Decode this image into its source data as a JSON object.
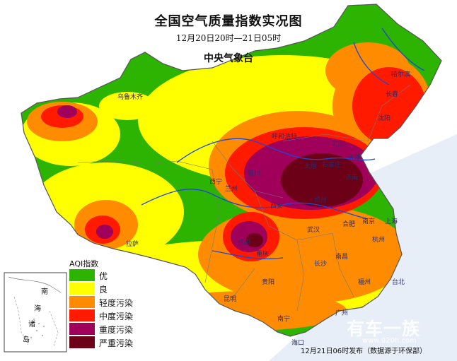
{
  "title": "全国空气质量指数实况图",
  "period": "12月20日20时—21日05时",
  "source": "中央气象台",
  "footer": "12月21日06时发布（数据源于环保部）",
  "watermark": {
    "brand": "有车一族",
    "url": "www.020h.com"
  },
  "legend": {
    "title": "AQI指数",
    "items": [
      {
        "label": "优",
        "color": "#2db400"
      },
      {
        "label": "良",
        "color": "#ffff00"
      },
      {
        "label": "轻度污染",
        "color": "#ff8c00"
      },
      {
        "label": "中度污染",
        "color": "#ff1a00"
      },
      {
        "label": "重度污染",
        "color": "#a0005a"
      },
      {
        "label": "严重污染",
        "color": "#6b0016"
      }
    ]
  },
  "inset": {
    "labels": [
      "南",
      "海",
      "诸",
      "岛"
    ]
  },
  "cities": [
    "乌鲁木齐",
    "哈尔滨",
    "长春",
    "沈阳",
    "呼和浩特",
    "北京",
    "天津",
    "太原",
    "石家庄",
    "银川",
    "西宁",
    "兰州",
    "西安",
    "郑州",
    "济南",
    "合肥",
    "南京",
    "上海",
    "杭州",
    "武汉",
    "成都",
    "重庆",
    "长沙",
    "贵阳",
    "南昌",
    "福州",
    "台北",
    "拉萨",
    "昆明",
    "南宁",
    "广州",
    "海口"
  ]
}
